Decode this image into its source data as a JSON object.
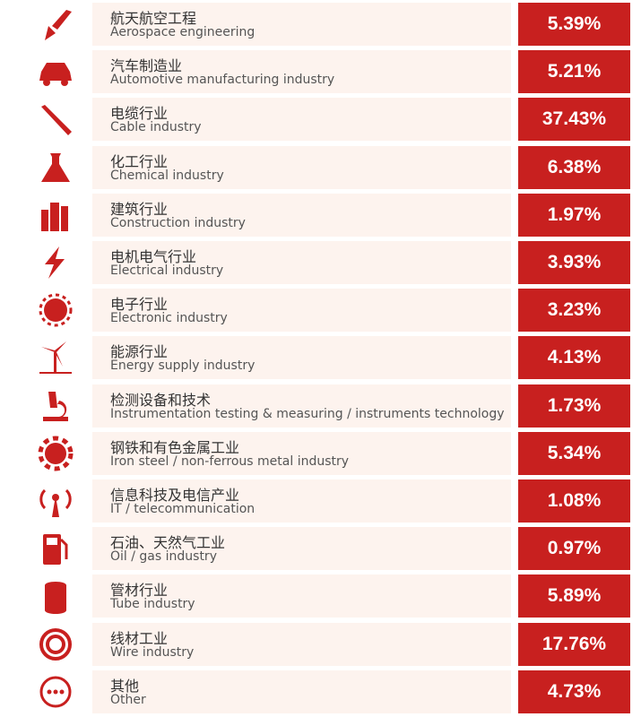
{
  "items": [
    {
      "zh": "航天航空工程",
      "en": "Aerospace engineering",
      "value": "5.39%"
    },
    {
      "zh": "汽车制造业",
      "en": "Automotive manufacturing industry",
      "value": "5.21%"
    },
    {
      "zh": "电缆行业",
      "en": "Cable industry",
      "value": "37.43%"
    },
    {
      "zh": "化工行业",
      "en": "Chemical industry",
      "value": "6.38%"
    },
    {
      "zh": "建筑行业",
      "en": "Construction industry",
      "value": "1.97%"
    },
    {
      "zh": "电机电气行业",
      "en": "Electrical industry",
      "value": "3.93%"
    },
    {
      "zh": "电子行业",
      "en": "Electronic industry",
      "value": "3.23%"
    },
    {
      "zh": "能源行业",
      "en": "Energy supply industry",
      "value": "4.13%"
    },
    {
      "zh": "检测设备和技术",
      "en": "Instrumentation testing & measuring / instruments technology",
      "value": "1.73%"
    },
    {
      "zh": "钢铁和有色金属工业",
      "en": "Iron steel / non-ferrous metal industry",
      "value": "5.34%"
    },
    {
      "zh": "信息科技及电信产业",
      "en": "IT / telecommunication",
      "value": "1.08%"
    },
    {
      "zh": "石油、天然气工业",
      "en": "Oil / gas industry",
      "value": "0.97%"
    },
    {
      "zh": "管材行业",
      "en": "Tube industry",
      "value": "5.89%"
    },
    {
      "zh": "线材工业",
      "en": "Wire industry",
      "value": "17.76%"
    },
    {
      "zh": "其他",
      "en": "Other",
      "value": "4.73%"
    }
  ]
}
